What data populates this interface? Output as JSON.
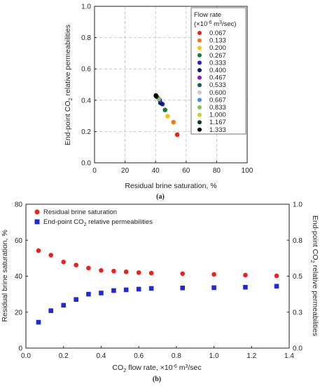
{
  "chart_data": [
    {
      "type": "scatter",
      "panel_label": "(a)",
      "xlabel": "Residual brine saturation, %",
      "ylabel_parts": [
        "End-point CO",
        "2",
        " relative permeabilities"
      ],
      "xlim": [
        0,
        100
      ],
      "ylim": [
        0,
        1.0
      ],
      "xticks": [
        "0",
        "20",
        "40",
        "60",
        "80",
        "100"
      ],
      "yticks": [
        "0.0",
        "0.2",
        "0.4",
        "0.6",
        "0.8",
        "1.0"
      ],
      "grid": true,
      "legend_title_parts": [
        "Flow rate",
        "(×10",
        "-6",
        " m",
        "3",
        "/sec)"
      ],
      "legend_placement": "top-right",
      "points": [
        {
          "label": "0.067",
          "x": 54.2,
          "y": 0.18,
          "color": "#e8231e"
        },
        {
          "label": "0.133",
          "x": 51.7,
          "y": 0.26,
          "color": "#f07a16"
        },
        {
          "label": "0.200",
          "x": 47.9,
          "y": 0.298,
          "color": "#f2c21a"
        },
        {
          "label": "0.267",
          "x": 46.2,
          "y": 0.338,
          "color": "#1a7a3a"
        },
        {
          "label": "0.333",
          "x": 44.5,
          "y": 0.375,
          "color": "#1e22c8"
        },
        {
          "label": "0.400",
          "x": 43.2,
          "y": 0.383,
          "color": "#0a1a5a"
        },
        {
          "label": "0.467",
          "x": 42.8,
          "y": 0.4,
          "color": "#8a1ac0"
        },
        {
          "label": "0.533",
          "x": 42.4,
          "y": 0.405,
          "color": "#1e5a5a"
        },
        {
          "label": "0.600",
          "x": 42.0,
          "y": 0.41,
          "color": "#c8ccc8"
        },
        {
          "label": "0.667",
          "x": 41.7,
          "y": 0.415,
          "color": "#4a8ae0"
        },
        {
          "label": "0.833",
          "x": 41.4,
          "y": 0.418,
          "color": "#7ac84a"
        },
        {
          "label": "1.000",
          "x": 41.0,
          "y": 0.42,
          "color": "#c8d21e"
        },
        {
          "label": "1.167",
          "x": 40.6,
          "y": 0.423,
          "color": "#0a3a1e"
        },
        {
          "label": "1.333",
          "x": 40.2,
          "y": 0.43,
          "color": "#000000"
        }
      ]
    },
    {
      "type": "scatter",
      "panel_label": "(b)",
      "xlabel_parts": [
        "CO",
        "2",
        " flow rate, ×10",
        "-6",
        " m",
        "3",
        "/sec"
      ],
      "ylabel": "Residual brine saturation, %",
      "y2label_parts": [
        "End-point CO",
        "2",
        " relative permeabilities"
      ],
      "xlim": [
        0,
        1.4
      ],
      "ylim": [
        0,
        80
      ],
      "y2lim": [
        0,
        1.0
      ],
      "xticks": [
        "0.0",
        "0.2",
        "0.4",
        "0.6",
        "0.8",
        "1.0",
        "1.2",
        "1.4"
      ],
      "yticks": [
        "0",
        "20",
        "40",
        "60",
        "80"
      ],
      "y2ticks": [
        "0.0",
        "0.3",
        "0.5",
        "0.8",
        "1.0"
      ],
      "grid": false,
      "legend_placement": "top-left",
      "x": [
        0.067,
        0.133,
        0.2,
        0.267,
        0.333,
        0.4,
        0.467,
        0.533,
        0.6,
        0.667,
        0.833,
        1.0,
        1.167,
        1.333
      ],
      "series": [
        {
          "name": "Residual brine saturation",
          "axis": "left",
          "marker": "circle",
          "color": "#e8231e",
          "values": [
            54.2,
            51.7,
            47.9,
            46.2,
            44.5,
            43.2,
            42.8,
            42.4,
            42.0,
            41.7,
            41.4,
            41.0,
            40.6,
            40.2
          ]
        },
        {
          "name_parts": [
            "End-point CO",
            "2",
            " relative permeabilities"
          ],
          "axis": "right",
          "marker": "square",
          "color": "#1e2ad2",
          "values": [
            0.18,
            0.26,
            0.298,
            0.338,
            0.375,
            0.383,
            0.4,
            0.405,
            0.41,
            0.415,
            0.418,
            0.42,
            0.423,
            0.43
          ]
        }
      ]
    }
  ]
}
